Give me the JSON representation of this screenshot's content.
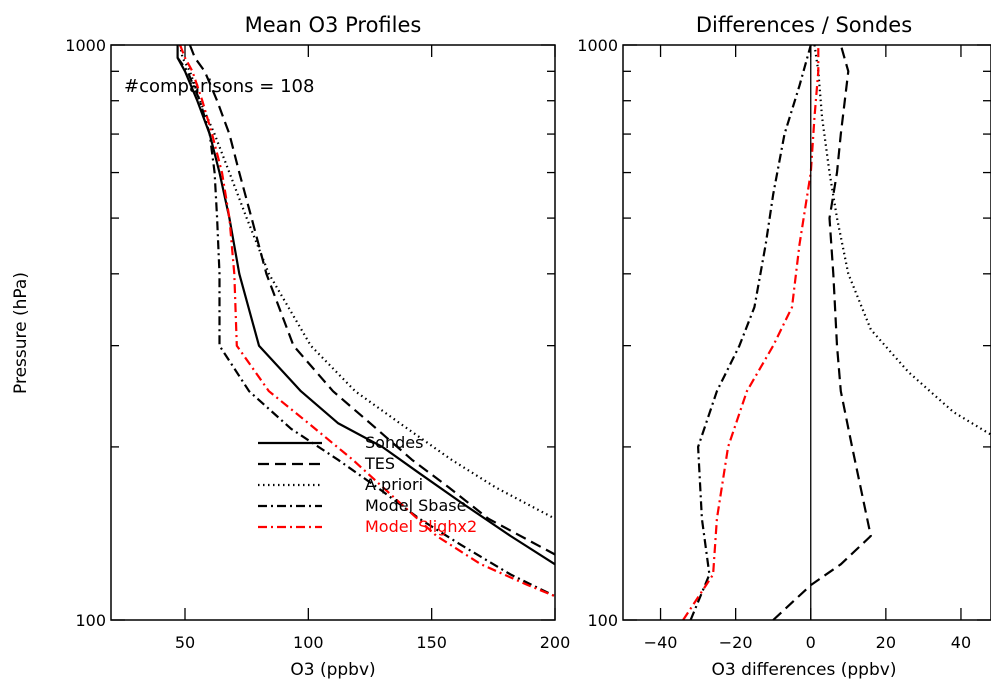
{
  "chart_data": [
    {
      "type": "line",
      "title": "Mean O3 Profiles",
      "xlabel": "O3 (ppbv)",
      "ylabel": "Pressure (hPa)",
      "xlim": [
        20,
        200
      ],
      "ylim": [
        1000,
        100
      ],
      "yscale": "log",
      "grid": false,
      "x_ticks": [
        50,
        100,
        150,
        200
      ],
      "y_tick_labels": [
        {
          "value": 100,
          "label": "100"
        },
        {
          "value": 1000,
          "label": "1000"
        }
      ],
      "y_minor_ticks": [
        200,
        300,
        400,
        500,
        600,
        700,
        800,
        900
      ],
      "annotation": "#comparisons = 108",
      "legend_position": "bottom-center",
      "series": [
        {
          "name": "Sondes",
          "color": "#000000",
          "style": "solid",
          "points": [
            [
              47,
              1000
            ],
            [
              47,
              950
            ],
            [
              50,
              900
            ],
            [
              55,
              800
            ],
            [
              60,
              700
            ],
            [
              64,
              600
            ],
            [
              68,
              500
            ],
            [
              72,
              400
            ],
            [
              80,
              300
            ],
            [
              97,
              250
            ],
            [
              112,
              220
            ],
            [
              130,
              200
            ],
            [
              145,
              180
            ],
            [
              162,
              160
            ],
            [
              182,
              140
            ],
            [
              200,
              125
            ]
          ]
        },
        {
          "name": "TES",
          "color": "#000000",
          "style": "dashed",
          "points": [
            [
              52,
              1000
            ],
            [
              54,
              950
            ],
            [
              58,
              900
            ],
            [
              63,
              800
            ],
            [
              68,
              700
            ],
            [
              72,
              600
            ],
            [
              77,
              500
            ],
            [
              83,
              400
            ],
            [
              94,
              300
            ],
            [
              110,
              250
            ],
            [
              125,
              220
            ],
            [
              142,
              190
            ],
            [
              157,
              170
            ],
            [
              173,
              150
            ],
            [
              200,
              130
            ]
          ]
        },
        {
          "name": "A priori",
          "color": "#000000",
          "style": "dotted",
          "points": [
            [
              48,
              1000
            ],
            [
              49,
              950
            ],
            [
              52,
              900
            ],
            [
              56,
              800
            ],
            [
              62,
              700
            ],
            [
              68,
              600
            ],
            [
              75,
              500
            ],
            [
              84,
              400
            ],
            [
              101,
              300
            ],
            [
              119,
              250
            ],
            [
              137,
              220
            ],
            [
              158,
              190
            ],
            [
              176,
              170
            ],
            [
              200,
              150
            ]
          ]
        },
        {
          "name": "Model Sbase",
          "color": "#000000",
          "style": "dashdot",
          "points": [
            [
              47,
              950
            ],
            [
              51,
              900
            ],
            [
              56,
              800
            ],
            [
              60,
              700
            ],
            [
              62,
              600
            ],
            [
              63,
              500
            ],
            [
              64,
              400
            ],
            [
              64,
              300
            ],
            [
              76,
              250
            ],
            [
              93,
              215
            ],
            [
              112,
              190
            ],
            [
              128,
              170
            ],
            [
              145,
              150
            ],
            [
              162,
              135
            ],
            [
              182,
              120
            ],
            [
              200,
              110
            ]
          ]
        },
        {
          "name": "Model Slighx2",
          "color": "#ff0000",
          "style": "dashdot",
          "points": [
            [
              48,
              1000
            ],
            [
              50,
              950
            ],
            [
              53,
              900
            ],
            [
              57,
              800
            ],
            [
              61,
              700
            ],
            [
              65,
              600
            ],
            [
              68,
              500
            ],
            [
              70,
              400
            ],
            [
              71,
              300
            ],
            [
              84,
              250
            ],
            [
              100,
              220
            ],
            [
              118,
              190
            ],
            [
              137,
              160
            ],
            [
              152,
              140
            ],
            [
              170,
              125
            ],
            [
              189,
              115
            ],
            [
              200,
              110
            ]
          ]
        }
      ]
    },
    {
      "type": "line",
      "title": "Differences / Sondes",
      "xlabel": "O3 differences (ppbv)",
      "ylabel": "",
      "xlim": [
        -50,
        48
      ],
      "ylim": [
        1000,
        100
      ],
      "yscale": "log",
      "grid": false,
      "x_ticks": [
        -40,
        -20,
        0,
        20,
        40
      ],
      "y_tick_labels": [
        {
          "value": 100,
          "label": "100"
        },
        {
          "value": 1000,
          "label": "1000"
        }
      ],
      "y_minor_ticks": [
        200,
        300,
        400,
        500,
        600,
        700,
        800,
        900
      ],
      "reference_line_x": 0,
      "series": [
        {
          "name": "TES",
          "color": "#000000",
          "style": "dashed",
          "points": [
            [
              -10,
              100
            ],
            [
              0,
              115
            ],
            [
              8,
              125
            ],
            [
              16,
              140
            ],
            [
              11,
              200
            ],
            [
              8,
              250
            ],
            [
              7,
              300
            ],
            [
              6,
              400
            ],
            [
              5,
              500
            ],
            [
              7,
              600
            ],
            [
              8,
              700
            ],
            [
              10,
              900
            ],
            [
              8,
              1000
            ]
          ]
        },
        {
          "name": "A priori",
          "color": "#000000",
          "style": "dotted",
          "points": [
            [
              1,
              1000
            ],
            [
              2,
              900
            ],
            [
              3,
              750
            ],
            [
              5,
              600
            ],
            [
              7,
              500
            ],
            [
              10,
              400
            ],
            [
              16,
              320
            ],
            [
              26,
              270
            ],
            [
              38,
              230
            ],
            [
              48,
              210
            ]
          ]
        },
        {
          "name": "Model Sbase",
          "color": "#000000",
          "style": "dashdot",
          "points": [
            [
              -32,
              100
            ],
            [
              -27,
              120
            ],
            [
              -29,
              150
            ],
            [
              -30,
              200
            ],
            [
              -25,
              250
            ],
            [
              -19,
              300
            ],
            [
              -15,
              350
            ],
            [
              -12,
              450
            ],
            [
              -10,
              550
            ],
            [
              -7,
              700
            ],
            [
              -3,
              850
            ],
            [
              0,
              1000
            ]
          ]
        },
        {
          "name": "Model Slighx2",
          "color": "#ff0000",
          "style": "dashdot",
          "points": [
            [
              -34,
              100
            ],
            [
              -26,
              120
            ],
            [
              -25,
              150
            ],
            [
              -22,
              200
            ],
            [
              -17,
              250
            ],
            [
              -10,
              300
            ],
            [
              -5,
              350
            ],
            [
              -3,
              450
            ],
            [
              0,
              600
            ],
            [
              1,
              750
            ],
            [
              2,
              900
            ],
            [
              2,
              1000
            ]
          ]
        }
      ]
    }
  ]
}
